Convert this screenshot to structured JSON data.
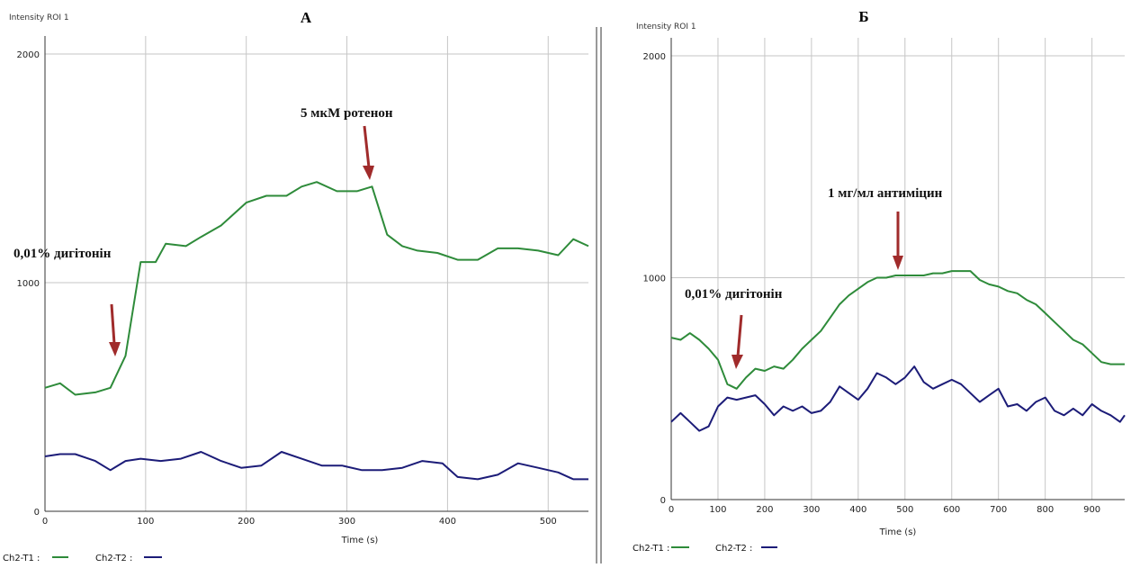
{
  "chart_data": [
    {
      "type": "line",
      "title": "А",
      "ylabel": "Intensity ROI 1",
      "xlabel": "Time (s)",
      "xlim": [
        0,
        540
      ],
      "ylim": [
        0,
        2000
      ],
      "x_ticks": [
        0,
        100,
        200,
        300,
        400,
        500
      ],
      "y_ticks": [
        0,
        1000,
        2000
      ],
      "x_tick_labels": [
        "0",
        "100",
        "200",
        "300",
        "400",
        "500"
      ],
      "y_tick_labels": [
        "0",
        "1000",
        "2000"
      ],
      "grid": true,
      "legend_position": "bottom-left",
      "series": [
        {
          "name": "Ch2-T1 :",
          "color": "#2e8b3a",
          "x": [
            0,
            15,
            30,
            50,
            65,
            80,
            95,
            110,
            120,
            140,
            155,
            175,
            200,
            220,
            240,
            255,
            270,
            290,
            310,
            325,
            340,
            355,
            370,
            390,
            410,
            430,
            450,
            470,
            490,
            510,
            525,
            540
          ],
          "y": [
            540,
            560,
            510,
            520,
            540,
            680,
            1090,
            1090,
            1170,
            1160,
            1200,
            1250,
            1350,
            1380,
            1380,
            1420,
            1440,
            1400,
            1400,
            1420,
            1210,
            1160,
            1140,
            1130,
            1100,
            1100,
            1150,
            1150,
            1140,
            1120,
            1190,
            1160
          ]
        },
        {
          "name": "Ch2-T2 :",
          "color": "#1c1c78",
          "x": [
            0,
            15,
            30,
            50,
            65,
            80,
            95,
            115,
            135,
            155,
            175,
            195,
            215,
            235,
            255,
            275,
            295,
            315,
            335,
            355,
            375,
            395,
            410,
            430,
            450,
            470,
            490,
            510,
            525,
            540
          ],
          "y": [
            240,
            250,
            250,
            220,
            180,
            220,
            230,
            220,
            230,
            260,
            220,
            190,
            200,
            260,
            230,
            200,
            200,
            180,
            180,
            190,
            220,
            210,
            150,
            140,
            160,
            210,
            190,
            170,
            140,
            140
          ]
        }
      ],
      "annotations": [
        {
          "text": "0,01% дигітонін",
          "x": 70
        },
        {
          "text": "5 мкМ ротенон",
          "x": 325
        }
      ]
    },
    {
      "type": "line",
      "title": "Б",
      "ylabel": "Intensity ROI 1",
      "xlabel": "Time (s)",
      "xlim": [
        0,
        970
      ],
      "ylim": [
        0,
        2000
      ],
      "x_ticks": [
        0,
        100,
        200,
        300,
        400,
        500,
        600,
        700,
        800,
        900
      ],
      "y_ticks": [
        0,
        1000,
        2000
      ],
      "x_tick_labels": [
        "0",
        "100",
        "200",
        "300",
        "400",
        "500",
        "600",
        "700",
        "800",
        "900"
      ],
      "y_tick_labels": [
        "0",
        "1000",
        "2000"
      ],
      "grid": true,
      "legend_position": "bottom-left",
      "series": [
        {
          "name": "Ch2-T1 :",
          "color": "#2e8b3a",
          "x": [
            0,
            20,
            40,
            60,
            80,
            100,
            120,
            140,
            160,
            180,
            200,
            220,
            240,
            260,
            280,
            300,
            320,
            340,
            360,
            380,
            400,
            420,
            440,
            460,
            480,
            500,
            520,
            540,
            560,
            580,
            600,
            620,
            640,
            660,
            680,
            700,
            720,
            740,
            760,
            780,
            800,
            820,
            840,
            860,
            880,
            900,
            920,
            940,
            960,
            970
          ],
          "y": [
            730,
            720,
            750,
            720,
            680,
            630,
            520,
            500,
            550,
            590,
            580,
            600,
            590,
            630,
            680,
            720,
            760,
            820,
            880,
            920,
            950,
            980,
            1000,
            1000,
            1010,
            1010,
            1010,
            1010,
            1020,
            1020,
            1030,
            1030,
            1030,
            990,
            970,
            960,
            940,
            930,
            900,
            880,
            840,
            800,
            760,
            720,
            700,
            660,
            620,
            610,
            610,
            610
          ]
        },
        {
          "name": "Ch2-T2 :",
          "color": "#1c1c78",
          "x": [
            0,
            20,
            40,
            60,
            80,
            100,
            120,
            140,
            160,
            180,
            200,
            220,
            240,
            260,
            280,
            300,
            320,
            340,
            360,
            380,
            400,
            420,
            440,
            460,
            480,
            500,
            520,
            540,
            560,
            580,
            600,
            620,
            640,
            660,
            680,
            700,
            720,
            740,
            760,
            780,
            800,
            820,
            840,
            860,
            880,
            900,
            920,
            940,
            960,
            970
          ],
          "y": [
            350,
            390,
            350,
            310,
            330,
            420,
            460,
            450,
            460,
            470,
            430,
            380,
            420,
            400,
            420,
            390,
            400,
            440,
            510,
            480,
            450,
            500,
            570,
            550,
            520,
            550,
            600,
            530,
            500,
            520,
            540,
            520,
            480,
            440,
            470,
            500,
            420,
            430,
            400,
            440,
            460,
            400,
            380,
            410,
            380,
            430,
            400,
            380,
            350,
            380
          ]
        }
      ],
      "annotations": [
        {
          "text": "0,01% дигітонін",
          "x": 140
        },
        {
          "text": "1 мг/мл антиміцин",
          "x": 485
        }
      ]
    }
  ]
}
